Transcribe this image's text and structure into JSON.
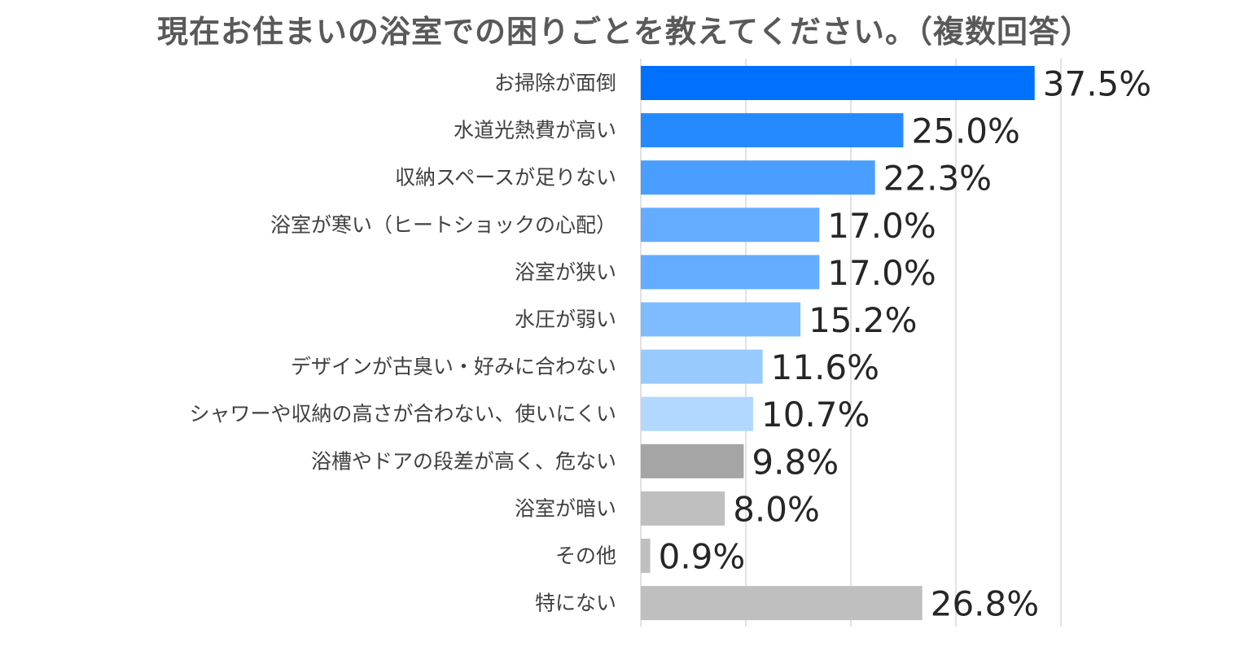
{
  "chart_data": {
    "type": "bar",
    "orientation": "horizontal",
    "title": "現在お住まいの浴室での困りごとを教えてください。（複数回答）",
    "categories": [
      "お掃除が面倒",
      "水道光熱費が高い",
      "収納スペースが足りない",
      "浴室が寒い（ヒートショックの心配）",
      "浴室が狭い",
      "水圧が弱い",
      "デザインが古臭い・好みに合わない",
      "シャワーや収納の高さが合わない、使いにくい",
      "浴槽やドアの段差が高く、危ない",
      "浴室が暗い",
      "その他",
      "特にない"
    ],
    "values": [
      37.5,
      25.0,
      22.3,
      17.0,
      17.0,
      15.2,
      11.6,
      10.7,
      9.8,
      8.0,
      0.9,
      26.8
    ],
    "value_labels": [
      "37.5%",
      "25.0%",
      "22.3%",
      "17.0%",
      "17.0%",
      "15.2%",
      "11.6%",
      "10.7%",
      "9.8%",
      "8.0%",
      "0.9%",
      "26.8%"
    ],
    "bar_colors": [
      "#0070ff",
      "#268aff",
      "#4a9eff",
      "#64acff",
      "#64acff",
      "#7fbcff",
      "#99caff",
      "#b3d8ff",
      "#a5a5a5",
      "#bfbfbf",
      "#bfbfbf",
      "#bfbfbf"
    ],
    "xlim": [
      0,
      40
    ],
    "grid": true,
    "xlabel": "",
    "ylabel": ""
  }
}
